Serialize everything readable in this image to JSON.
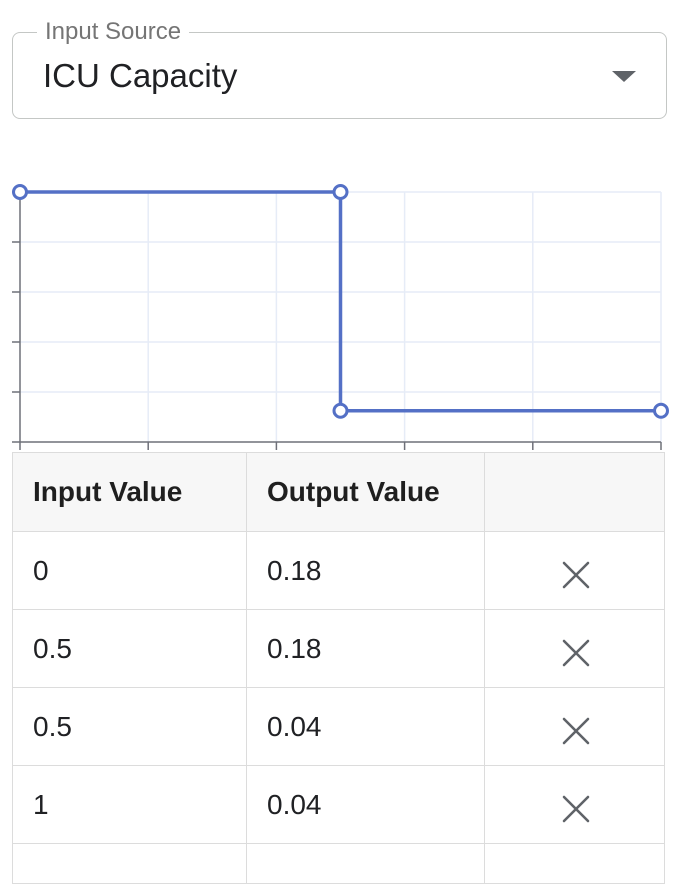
{
  "input_source": {
    "label": "Input Source",
    "value": "ICU Capacity",
    "icon": "arrow-drop-down-icon"
  },
  "chart_data": {
    "type": "line",
    "interpolation": "linear",
    "x": [
      0,
      0.5,
      0.5,
      1
    ],
    "y": [
      0.18,
      0.18,
      0.04,
      0.04
    ],
    "xlim": [
      0,
      1
    ],
    "ylim": [
      0.02,
      0.18
    ],
    "x_tick_count": 6,
    "y_tick_count": 6,
    "grid": true,
    "tick_labels_visible": false,
    "line_color": "#5470c6",
    "grid_color": "#e6ecf7",
    "axis_color": "#6e7079"
  },
  "table": {
    "headers": [
      "Input Value",
      "Output Value",
      ""
    ],
    "rows": [
      {
        "input": "0",
        "output": "0.18"
      },
      {
        "input": "0.5",
        "output": "0.18"
      },
      {
        "input": "0.5",
        "output": "0.04"
      },
      {
        "input": "1",
        "output": "0.04"
      }
    ],
    "delete_icon": "close-icon"
  }
}
